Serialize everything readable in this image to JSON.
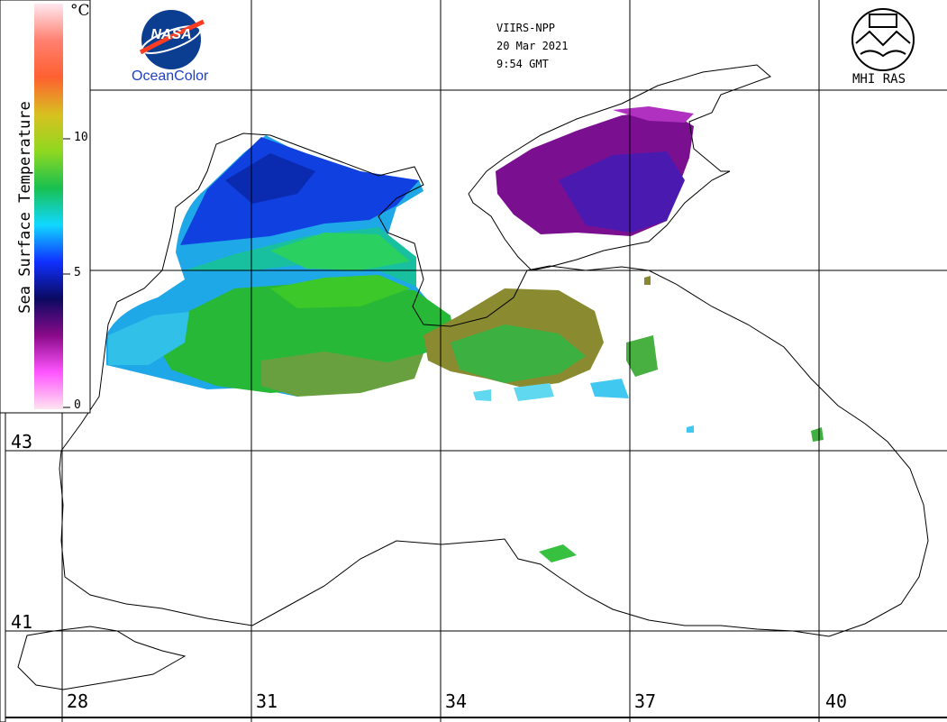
{
  "product": {
    "sensor": "VIIRS-NPP",
    "date": "20 Mar 2021",
    "time": "9:54 GMT"
  },
  "logos": {
    "left_badge": "NASA",
    "left_caption": "OceanColor",
    "right_caption": "MHI RAS"
  },
  "legend": {
    "title": "Sea Surface Temperature",
    "unit": "°C",
    "ticks": [
      "10",
      "5",
      "0"
    ],
    "colormap": [
      "#ffe4f0",
      "#ff55ff",
      "#8a0a8a",
      "#0a0a60",
      "#1030ff",
      "#10d8ff",
      "#18c050",
      "#90d820",
      "#d8c020",
      "#ff6030",
      "#ff8070",
      "#ffe8f0"
    ],
    "range": [
      0,
      15
    ]
  },
  "grid": {
    "latitudes": [
      "43",
      "41"
    ],
    "longitudes": [
      "28",
      "31",
      "34",
      "37",
      "40"
    ]
  },
  "colors": {
    "background": "#ffffff",
    "coast": "#000000",
    "grid": "#000000",
    "nasa_blue": "#0b3d91",
    "nasa_red": "#fc3d21"
  }
}
